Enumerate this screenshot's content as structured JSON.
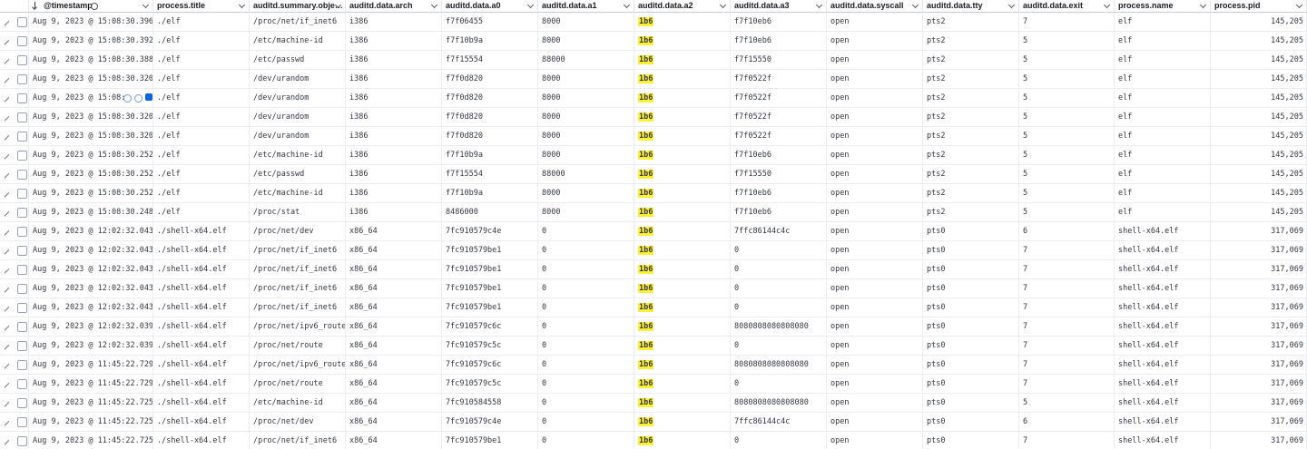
{
  "table": {
    "columns": [
      "@timestamp",
      "process.title",
      "auditd.summary.obje…",
      "auditd.data.arch",
      "auditd.data.a0",
      "auditd.data.a1",
      "auditd.data.a2",
      "auditd.data.a3",
      "auditd.data.syscall",
      "auditd.data.tty",
      "auditd.data.exit",
      "process.name",
      "process.pid"
    ],
    "rows": [
      [
        "Aug 9, 2023 @ 15:08:30.396",
        "./elf",
        "/proc/net/if_inet6",
        "i386",
        "f7f06455",
        "8000",
        "1b6",
        "f7f10eb6",
        "open",
        "pts2",
        "7",
        "elf",
        "145,205"
      ],
      [
        "Aug 9, 2023 @ 15:08:30.392",
        "./elf",
        "/etc/machine-id",
        "i386",
        "f7f10b9a",
        "8000",
        "1b6",
        "f7f10eb6",
        "open",
        "pts2",
        "5",
        "elf",
        "145,205"
      ],
      [
        "Aug 9, 2023 @ 15:08:30.388",
        "./elf",
        "/etc/passwd",
        "i386",
        "f7f15554",
        "88000",
        "1b6",
        "f7f15550",
        "open",
        "pts2",
        "5",
        "elf",
        "145,205"
      ],
      [
        "Aug 9, 2023 @ 15:08:30.320",
        "./elf",
        "/dev/urandom",
        "i386",
        "f7f0d820",
        "8000",
        "1b6",
        "f7f0522f",
        "open",
        "pts2",
        "5",
        "elf",
        "145,205"
      ],
      [
        "Aug 9, 2023 @ 15:08:",
        "./elf",
        "/dev/urandom",
        "i386",
        "f7f0d820",
        "8000",
        "1b6",
        "f7f0522f",
        "open",
        "pts2",
        "5",
        "elf",
        "145,205"
      ],
      [
        "Aug 9, 2023 @ 15:08:30.320",
        "./elf",
        "/dev/urandom",
        "i386",
        "f7f0d820",
        "8000",
        "1b6",
        "f7f0522f",
        "open",
        "pts2",
        "5",
        "elf",
        "145,205"
      ],
      [
        "Aug 9, 2023 @ 15:08:30.320",
        "./elf",
        "/dev/urandom",
        "i386",
        "f7f0d820",
        "8000",
        "1b6",
        "f7f0522f",
        "open",
        "pts2",
        "5",
        "elf",
        "145,205"
      ],
      [
        "Aug 9, 2023 @ 15:08:30.252",
        "./elf",
        "/etc/machine-id",
        "i386",
        "f7f10b9a",
        "8000",
        "1b6",
        "f7f10eb6",
        "open",
        "pts2",
        "5",
        "elf",
        "145,205"
      ],
      [
        "Aug 9, 2023 @ 15:08:30.252",
        "./elf",
        "/etc/passwd",
        "i386",
        "f7f15554",
        "88000",
        "1b6",
        "f7f15550",
        "open",
        "pts2",
        "5",
        "elf",
        "145,205"
      ],
      [
        "Aug 9, 2023 @ 15:08:30.252",
        "./elf",
        "/etc/machine-id",
        "i386",
        "f7f10b9a",
        "8000",
        "1b6",
        "f7f10eb6",
        "open",
        "pts2",
        "5",
        "elf",
        "145,205"
      ],
      [
        "Aug 9, 2023 @ 15:08:30.248",
        "./elf",
        "/proc/stat",
        "i386",
        "8486000",
        "8000",
        "1b6",
        "f7f10eb6",
        "open",
        "pts2",
        "5",
        "elf",
        "145,205"
      ],
      [
        "Aug 9, 2023 @ 12:02:32.043",
        "./shell-x64.elf",
        "/proc/net/dev",
        "x86_64",
        "7fc910579c4e",
        "0",
        "1b6",
        "7ffc86144c4c",
        "open",
        "pts0",
        "6",
        "shell-x64.elf",
        "317,069"
      ],
      [
        "Aug 9, 2023 @ 12:02:32.043",
        "./shell-x64.elf",
        "/proc/net/if_inet6",
        "x86_64",
        "7fc910579be1",
        "0",
        "1b6",
        "0",
        "open",
        "pts0",
        "7",
        "shell-x64.elf",
        "317,069"
      ],
      [
        "Aug 9, 2023 @ 12:02:32.043",
        "./shell-x64.elf",
        "/proc/net/if_inet6",
        "x86_64",
        "7fc910579be1",
        "0",
        "1b6",
        "0",
        "open",
        "pts0",
        "7",
        "shell-x64.elf",
        "317,069"
      ],
      [
        "Aug 9, 2023 @ 12:02:32.043",
        "./shell-x64.elf",
        "/proc/net/if_inet6",
        "x86_64",
        "7fc910579be1",
        "0",
        "1b6",
        "0",
        "open",
        "pts0",
        "7",
        "shell-x64.elf",
        "317,069"
      ],
      [
        "Aug 9, 2023 @ 12:02:32.043",
        "./shell-x64.elf",
        "/proc/net/if_inet6",
        "x86_64",
        "7fc910579be1",
        "0",
        "1b6",
        "0",
        "open",
        "pts0",
        "7",
        "shell-x64.elf",
        "317,069"
      ],
      [
        "Aug 9, 2023 @ 12:02:32.039",
        "./shell-x64.elf",
        "/proc/net/ipv6_route",
        "x86_64",
        "7fc910579c6c",
        "0",
        "1b6",
        "8080808080808080",
        "open",
        "pts0",
        "7",
        "shell-x64.elf",
        "317,069"
      ],
      [
        "Aug 9, 2023 @ 12:02:32.039",
        "./shell-x64.elf",
        "/proc/net/route",
        "x86_64",
        "7fc910579c5c",
        "0",
        "1b6",
        "0",
        "open",
        "pts0",
        "7",
        "shell-x64.elf",
        "317,069"
      ],
      [
        "Aug 9, 2023 @ 11:45:22.729",
        "./shell-x64.elf",
        "/proc/net/ipv6_route",
        "x86_64",
        "7fc910579c6c",
        "0",
        "1b6",
        "8080808080808080",
        "open",
        "pts0",
        "7",
        "shell-x64.elf",
        "317,069"
      ],
      [
        "Aug 9, 2023 @ 11:45:22.729",
        "./shell-x64.elf",
        "/proc/net/route",
        "x86_64",
        "7fc910579c5c",
        "0",
        "1b6",
        "0",
        "open",
        "pts0",
        "7",
        "shell-x64.elf",
        "317,069"
      ],
      [
        "Aug 9, 2023 @ 11:45:22.725",
        "./shell-x64.elf",
        "/etc/machine-id",
        "x86_64",
        "7fc910584558",
        "0",
        "1b6",
        "8080808080808080",
        "open",
        "pts0",
        "5",
        "shell-x64.elf",
        "317,069"
      ],
      [
        "Aug 9, 2023 @ 11:45:22.725",
        "./shell-x64.elf",
        "/proc/net/dev",
        "x86_64",
        "7fc910579c4e",
        "0",
        "1b6",
        "7ffc86144c4c",
        "open",
        "pts0",
        "6",
        "shell-x64.elf",
        "317,069"
      ],
      [
        "Aug 9, 2023 @ 11:45:22.725",
        "./shell-x64.elf",
        "/proc/net/if_inet6",
        "x86_64",
        "7fc910579be1",
        "0",
        "1b6",
        "0",
        "open",
        "pts0",
        "7",
        "shell-x64.elf",
        "317,069"
      ]
    ]
  }
}
